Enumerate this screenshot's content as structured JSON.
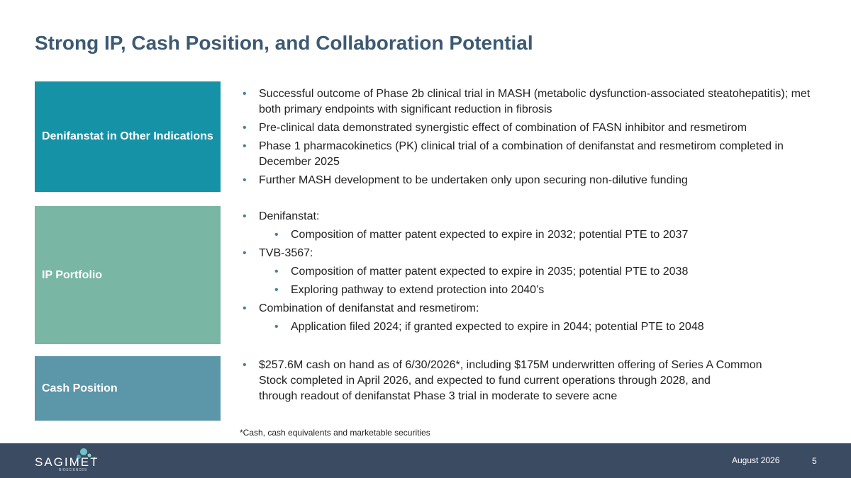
{
  "header": {
    "title": "Strong IP, Cash Position, and Collaboration Potential"
  },
  "sections": [
    {
      "label": "Denifanstat in Other Indications",
      "items": [
        {
          "level": 1,
          "text": "Successful outcome of Phase 2b clinical trial in MASH (metabolic dysfunction-associated steatohepatitis); met both primary endpoints with significant reduction in fibrosis"
        },
        {
          "level": 1,
          "text": "Pre-clinical data demonstrated synergistic effect of combination of FASN inhibitor and resmetirom"
        },
        {
          "level": 1,
          "text": "Phase 1 pharmacokinetics (PK) clinical trial of a combination of denifanstat and resmetirom completed in December 2025"
        },
        {
          "level": 1,
          "text": "Further MASH development to be undertaken only upon securing non-dilutive funding"
        }
      ]
    },
    {
      "label": "IP Portfolio",
      "items": [
        {
          "level": 1,
          "text": "Denifanstat:"
        },
        {
          "level": 2,
          "text": "Composition of matter patent expected to expire in 2032; potential PTE to 2037"
        },
        {
          "level": 1,
          "text": "TVB-3567:"
        },
        {
          "level": 2,
          "text": "Composition of matter patent expected to expire in 2035; potential PTE to 2038"
        },
        {
          "level": 2,
          "text": "Exploring pathway to extend protection into 2040’s"
        },
        {
          "level": 1,
          "text": "Combination of denifanstat and resmetirom:"
        },
        {
          "level": 2,
          "text": "Application filed 2024; if granted expected to expire in 2044; potential PTE to 2048"
        }
      ]
    },
    {
      "label": "Cash Position",
      "items": [
        {
          "level": 1,
          "lines": [
            "$257.6M cash on hand as of 6/30/2026*, including $175M underwritten offering of Series A Common",
            "Stock completed in April 2026, and expected to fund current operations through 2028, and",
            "through readout of denifanstat Phase 3 trial in moderate to severe acne"
          ]
        }
      ]
    }
  ],
  "footnote": "*Cash, cash equivalents and marketable securities",
  "footer": {
    "logo": "SAGIMET",
    "logo_sub": "BIOSCIENCES",
    "date": "August 2026",
    "page": "5"
  }
}
